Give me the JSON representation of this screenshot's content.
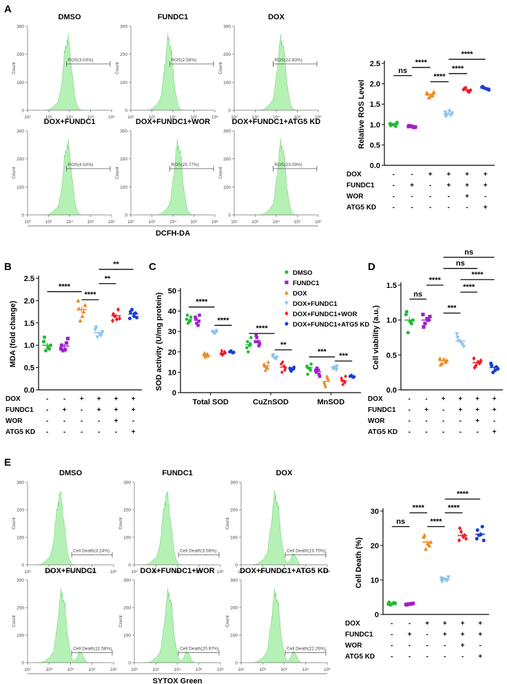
{
  "panel_letters": {
    "A": "A",
    "B": "B",
    "C": "C",
    "D": "D",
    "E": "E"
  },
  "colors": {
    "DMSO": "#22bb33",
    "FUNDC1": "#a021c8",
    "DOX": "#f08a1e",
    "DOX+FUNDC1": "#8dc3ee",
    "DOX+FUNDC1+WOR": "#ee1c25",
    "DOX+FUNDC1+ATG5 KD": "#1a3fd6",
    "histogram_fill": "#b5f0b5",
    "histogram_line": "#7ed67e"
  },
  "flow_axes": {
    "ticks_x": [
      "10²",
      "10³",
      "10⁴",
      "10⁵",
      "10⁶"
    ],
    "ticks_y": [
      "0",
      "100",
      "200",
      "300"
    ],
    "ylabel": "Count"
  },
  "flow_A": {
    "xlabel": "DCFH-DA",
    "panels": [
      {
        "title": "DMSO",
        "gate": "ROS(3.03%)",
        "peak": 3.9
      },
      {
        "title": "FUNDC1",
        "gate": "ROS(2.58%)",
        "peak": 3.8
      },
      {
        "title": "DOX",
        "gate": "ROS(22.83%)",
        "peak": 4.25
      },
      {
        "title": "DOX+FUNDC1",
        "gate": "ROS(4.53%)",
        "peak": 3.9
      },
      {
        "title": "DOX+FUNDC1+WOR",
        "gate": "ROS(25.77%)",
        "peak": 4.25
      },
      {
        "title": "DOX+FUNDC1+ATG5 KD",
        "gate": "ROS(23.09%)",
        "peak": 4.25
      }
    ]
  },
  "flow_E": {
    "xlabel": "SYTOX Green",
    "panels": [
      {
        "title": "DMSO",
        "gate": "Cell Death(3.24%)",
        "peak": 3.5,
        "shoulder": false
      },
      {
        "title": "FUNDC1",
        "gate": "Cell Death(3.58%)",
        "peak": 3.5,
        "shoulder": false
      },
      {
        "title": "DOX",
        "gate": "Cell Death(19.75%)",
        "peak": 3.6,
        "shoulder": true
      },
      {
        "title": "DOX+FUNDC1",
        "gate": "Cell Death(11.58%)",
        "peak": 3.6,
        "shoulder": true
      },
      {
        "title": "DOX+FUNDC1+WOR",
        "gate": "Cell Death(20.97%)",
        "peak": 3.6,
        "shoulder": true
      },
      {
        "title": "DOX+FUNDC1+ATG5 KD",
        "gate": "Cell Death(22.26%)",
        "peak": 3.6,
        "shoulder": true
      }
    ]
  },
  "condition_rows": [
    {
      "label": "DOX",
      "values": [
        "-",
        "-",
        "+",
        "+",
        "+",
        "+"
      ]
    },
    {
      "label": "FUNDC1",
      "values": [
        "-",
        "+",
        "-",
        "+",
        "+",
        "+"
      ]
    },
    {
      "label": "WOR",
      "values": [
        "-",
        "-",
        "-",
        "-",
        "+",
        "-"
      ]
    },
    {
      "label": "ATG5 KD",
      "values": [
        "-",
        "-",
        "-",
        "-",
        "-",
        "+"
      ]
    }
  ],
  "chart_data": [
    {
      "id": "A",
      "type": "scatter",
      "ylabel": "Relative ROS Level",
      "ylim": [
        0,
        2.5
      ],
      "yticks": [
        "0.0",
        "0.5",
        "1.0",
        "1.5",
        "2.0",
        "2.5"
      ],
      "groups": [
        {
          "name": "DMSO",
          "marker": "circle",
          "points": [
            1.02,
            0.96,
            1.0,
            1.05,
            0.98,
            1.0
          ],
          "mean": 1.0
        },
        {
          "name": "FUNDC1",
          "marker": "square",
          "points": [
            0.95,
            0.93,
            0.96,
            0.94,
            0.97,
            0.95
          ],
          "mean": 0.95
        },
        {
          "name": "DOX",
          "marker": "triangle",
          "points": [
            1.78,
            1.72,
            1.66,
            1.8,
            1.75,
            1.7
          ],
          "mean": 1.74
        },
        {
          "name": "DOX+FUNDC1",
          "marker": "triangle-down",
          "points": [
            1.3,
            1.22,
            1.25,
            1.28,
            1.2,
            1.33
          ],
          "mean": 1.26
        },
        {
          "name": "DOX+FUNDC1+WOR",
          "marker": "diamond",
          "points": [
            1.86,
            1.8,
            1.9,
            1.84,
            1.88,
            1.82
          ],
          "mean": 1.85
        },
        {
          "name": "DOX+FUNDC1+ATG5 KD",
          "marker": "circle",
          "points": [
            1.92,
            1.87,
            1.9,
            1.85,
            1.93,
            1.88
          ],
          "mean": 1.89
        }
      ],
      "brackets": [
        {
          "from": 0,
          "to": 1,
          "level": 2.2,
          "label": "ns"
        },
        {
          "from": 1,
          "to": 2,
          "level": 2.4,
          "label": "****"
        },
        {
          "from": 2,
          "to": 3,
          "level": 2.05,
          "label": "****"
        },
        {
          "from": 3,
          "to": 4,
          "level": 2.25,
          "label": "****"
        },
        {
          "from": 3,
          "to": 5,
          "level": 2.6,
          "label": "****"
        }
      ]
    },
    {
      "id": "B",
      "type": "scatter",
      "ylabel": "MDA (fold change)",
      "ylim": [
        0,
        2.5
      ],
      "yticks": [
        "0.0",
        "0.5",
        "1.0",
        "1.5",
        "2.0",
        "2.5"
      ],
      "groups": [
        {
          "name": "DMSO",
          "marker": "circle",
          "points": [
            1.08,
            0.92,
            0.88,
            1.0,
            1.18,
            0.95
          ],
          "mean": 1.0
        },
        {
          "name": "FUNDC1",
          "marker": "square",
          "points": [
            0.92,
            1.05,
            0.88,
            1.15,
            1.0,
            0.9
          ],
          "mean": 0.98
        },
        {
          "name": "DOX",
          "marker": "triangle",
          "points": [
            2.0,
            1.75,
            1.55,
            1.9,
            1.82,
            1.65
          ],
          "mean": 1.8
        },
        {
          "name": "DOX+FUNDC1",
          "marker": "triangle-down",
          "points": [
            1.35,
            1.22,
            1.18,
            1.3,
            1.4,
            1.25
          ],
          "mean": 1.28
        },
        {
          "name": "DOX+FUNDC1+WOR",
          "marker": "diamond",
          "points": [
            1.55,
            1.8,
            1.65,
            1.6,
            1.7,
            1.58
          ],
          "mean": 1.66
        },
        {
          "name": "DOX+FUNDC1+ATG5 KD",
          "marker": "circle",
          "points": [
            1.6,
            1.72,
            1.8,
            1.62,
            1.75,
            1.65
          ],
          "mean": 1.7
        }
      ],
      "brackets": [
        {
          "from": 0,
          "to": 2,
          "level": 2.2,
          "label": "****"
        },
        {
          "from": 2,
          "to": 3,
          "level": 2.02,
          "label": "****"
        },
        {
          "from": 3,
          "to": 4,
          "level": 2.38,
          "label": "**"
        },
        {
          "from": 3,
          "to": 5,
          "level": 2.7,
          "label": "**"
        }
      ]
    },
    {
      "id": "C",
      "type": "scatter",
      "ylabel": "SOD activity (U/mg protein)",
      "ylim": [
        0,
        50
      ],
      "yticks": [
        "0",
        "10",
        "20",
        "30",
        "40",
        "50"
      ],
      "categories": [
        "Total SOD",
        "CuZnSOD",
        "MnSOD"
      ],
      "series": [
        {
          "name": "DMSO",
          "marker": "circle",
          "groups": [
            {
              "points": [
                36,
                35,
                34,
                37,
                38,
                35
              ],
              "mean": 35.8
            },
            {
              "points": [
                22,
                24,
                20,
                27,
                25,
                23
              ],
              "mean": 23.5
            },
            {
              "points": [
                13,
                11,
                12,
                14,
                9,
                12
              ],
              "mean": 12.2
            }
          ]
        },
        {
          "name": "FUNDC1",
          "marker": "square",
          "groups": [
            {
              "points": [
                37,
                35,
                34,
                38,
                36,
                33
              ],
              "mean": 35.6
            },
            {
              "points": [
                25,
                23,
                27,
                24,
                28,
                25
              ],
              "mean": 25.2
            },
            {
              "points": [
                11,
                9,
                12,
                8,
                10,
                11
              ],
              "mean": 10.3
            }
          ]
        },
        {
          "name": "DOX",
          "marker": "triangle",
          "groups": [
            {
              "points": [
                18.5,
                19,
                17.5,
                18,
                19.5,
                18.5
              ],
              "mean": 18.5
            },
            {
              "points": [
                14,
                12,
                11,
                15,
                13,
                12.5
              ],
              "mean": 13.2
            },
            {
              "points": [
                5,
                7,
                3,
                6,
                4,
                8
              ],
              "mean": 5.5
            }
          ]
        },
        {
          "name": "DOX+FUNDC1",
          "marker": "triangle-down",
          "groups": [
            {
              "points": [
                30,
                29.5,
                29,
                30.5,
                29.8,
                29.2
              ],
              "mean": 29.7
            },
            {
              "points": [
                18,
                16.5,
                17,
                17.5,
                18.5,
                16.8
              ],
              "mean": 17.4
            },
            {
              "points": [
                12,
                11,
                12.5,
                13,
                11.5,
                12.2
              ],
              "mean": 12.0
            }
          ]
        },
        {
          "name": "DOX+FUNDC1+WOR",
          "marker": "diamond",
          "groups": [
            {
              "points": [
                19,
                20,
                18.5,
                19.5,
                20.5,
                19.2
              ],
              "mean": 19.4
            },
            {
              "points": [
                14,
                11,
                15,
                12,
                10,
                13
              ],
              "mean": 12.5
            },
            {
              "points": [
                7,
                5,
                4,
                8,
                6,
                5.5
              ],
              "mean": 5.8
            }
          ]
        },
        {
          "name": "DOX+FUNDC1+ATG5 KD",
          "marker": "circle",
          "groups": [
            {
              "points": [
                20,
                19.5,
                20.5,
                19.8,
                20.2,
                19.6
              ],
              "mean": 19.9
            },
            {
              "points": [
                12,
                11.5,
                10.5,
                12.5,
                11,
                11.8
              ],
              "mean": 11.6
            },
            {
              "points": [
                8,
                7.5,
                8.5,
                7.8,
                8.2,
                7.6
              ],
              "mean": 7.9
            }
          ]
        }
      ],
      "legend_position": "top-right",
      "brackets": [
        {
          "cat": 0,
          "from": 0,
          "to": 3,
          "level": 42,
          "label": "****"
        },
        {
          "cat": 0,
          "from": 3,
          "to": 5,
          "level": 33,
          "label": "****"
        },
        {
          "cat": 1,
          "from": 0,
          "to": 3,
          "level": 29,
          "label": "****"
        },
        {
          "cat": 1,
          "from": 3,
          "to": 5,
          "level": 21,
          "label": "**"
        },
        {
          "cat": 2,
          "from": 0,
          "to": 3,
          "level": 17.5,
          "label": "***"
        },
        {
          "cat": 2,
          "from": 3,
          "to": 5,
          "level": 15.5,
          "label": "***"
        }
      ]
    },
    {
      "id": "D",
      "type": "scatter",
      "ylabel": "Cell viability (a.u.)",
      "ylim": [
        0,
        1.5
      ],
      "yticks": [
        "0.0",
        "0.5",
        "1.0",
        "1.5"
      ],
      "groups": [
        {
          "name": "DMSO",
          "marker": "circle",
          "points": [
            1.08,
            0.95,
            0.82,
            1.0,
            1.12,
            0.98
          ],
          "mean": 1.0
        },
        {
          "name": "FUNDC1",
          "marker": "square",
          "points": [
            1.08,
            1.0,
            0.95,
            1.05,
            0.9,
            1.02
          ],
          "mean": 1.0
        },
        {
          "name": "DOX",
          "marker": "triangle",
          "points": [
            0.45,
            0.4,
            0.38,
            0.42,
            0.36,
            0.44
          ],
          "mean": 0.42
        },
        {
          "name": "DOX+FUNDC1",
          "marker": "triangle-down",
          "points": [
            0.8,
            0.65,
            0.7,
            0.62,
            0.75,
            0.68
          ],
          "mean": 0.7
        },
        {
          "name": "DOX+FUNDC1+WOR",
          "marker": "diamond",
          "points": [
            0.45,
            0.38,
            0.35,
            0.42,
            0.32,
            0.4
          ],
          "mean": 0.39
        },
        {
          "name": "DOX+FUNDC1+ATG5 KD",
          "marker": "circle",
          "points": [
            0.38,
            0.33,
            0.25,
            0.3,
            0.35,
            0.28
          ],
          "mean": 0.32
        }
      ],
      "brackets": [
        {
          "from": 0,
          "to": 1,
          "level": 1.3,
          "label": "ns"
        },
        {
          "from": 1,
          "to": 2,
          "level": 1.5,
          "label": "****"
        },
        {
          "from": 2,
          "to": 3,
          "level": 1.1,
          "label": "***"
        },
        {
          "from": 3,
          "to": 4,
          "level": 1.4,
          "label": "****"
        },
        {
          "from": 3,
          "to": 5,
          "level": 1.58,
          "label": "****"
        },
        {
          "from": 2,
          "to": 4,
          "level": 1.74,
          "label": "ns"
        },
        {
          "from": 2,
          "to": 5,
          "level": 1.9,
          "label": "ns"
        }
      ]
    },
    {
      "id": "E",
      "type": "scatter",
      "ylabel": "Cell Death (%)",
      "ylim": [
        0,
        30
      ],
      "yticks": [
        "0",
        "10",
        "20",
        "30"
      ],
      "groups": [
        {
          "name": "DMSO",
          "marker": "circle",
          "points": [
            3.0,
            3.4,
            2.8,
            3.2,
            3.5,
            3.1
          ],
          "mean": 3.1
        },
        {
          "name": "FUNDC1",
          "marker": "square",
          "points": [
            2.9,
            3.1,
            3.0,
            3.2,
            2.8,
            3.0
          ],
          "mean": 3.0
        },
        {
          "name": "DOX",
          "marker": "triangle",
          "points": [
            22.5,
            20,
            19,
            21,
            23,
            20.5
          ],
          "mean": 21.0
        },
        {
          "name": "DOX+FUNDC1",
          "marker": "triangle-down",
          "points": [
            10.5,
            9.8,
            10.2,
            10.8,
            9.5,
            10.1
          ],
          "mean": 10.1
        },
        {
          "name": "DOX+FUNDC1+WOR",
          "marker": "diamond",
          "points": [
            21.5,
            23,
            24,
            22,
            25,
            22.5
          ],
          "mean": 22.9
        },
        {
          "name": "DOX+FUNDC1+ATG5 KD",
          "marker": "circle",
          "points": [
            22,
            25.5,
            23,
            21.5,
            24.5,
            23.2
          ],
          "mean": 23.3
        }
      ],
      "brackets": [
        {
          "from": 0,
          "to": 1,
          "level": 25.5,
          "label": "ns"
        },
        {
          "from": 1,
          "to": 2,
          "level": 29.5,
          "label": "****"
        },
        {
          "from": 2,
          "to": 3,
          "level": 25.5,
          "label": "****"
        },
        {
          "from": 3,
          "to": 4,
          "level": 29.5,
          "label": "****"
        },
        {
          "from": 3,
          "to": 5,
          "level": 33.5,
          "label": "****"
        }
      ]
    }
  ]
}
